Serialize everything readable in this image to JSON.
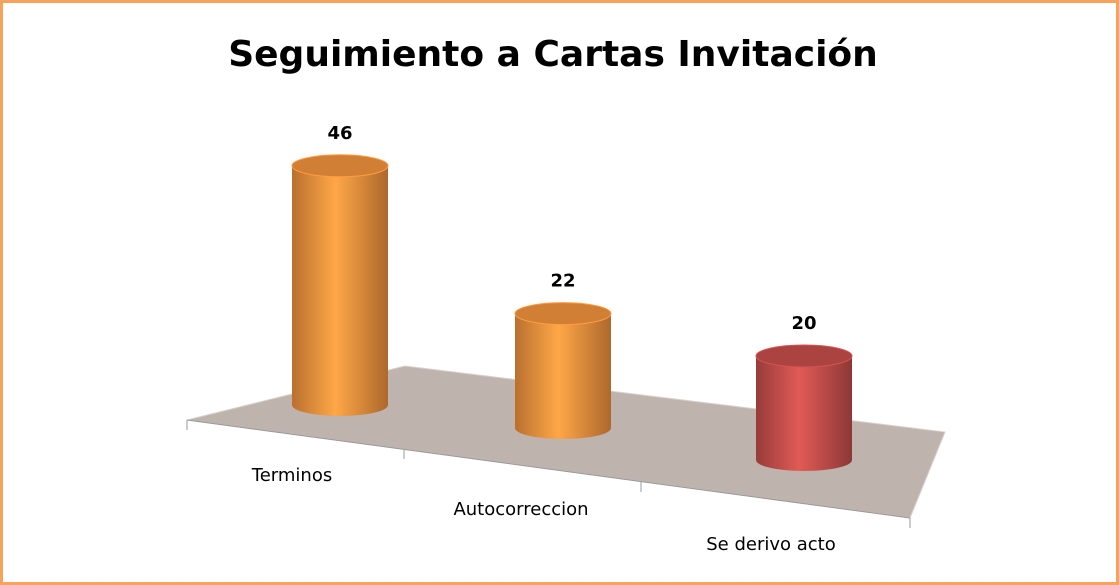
{
  "chart_data": {
    "type": "bar3d",
    "title": "Seguimiento a Cartas Invitación",
    "categories": [
      "Terminos",
      "Autocorreccion",
      "Se derivo acto"
    ],
    "values": [
      46,
      22,
      20
    ],
    "colors": [
      "#f7953f",
      "#f7953f",
      "#c9504d"
    ]
  }
}
